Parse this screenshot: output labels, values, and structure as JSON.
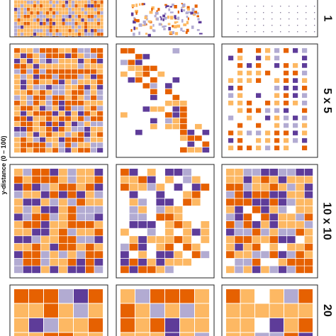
{
  "chart_data": {
    "type": "heatmap",
    "y_axis_title": "y-distance (0 – 100)",
    "row_labels": [
      "1",
      "5 x 5",
      "10 x 10",
      "20"
    ],
    "columns": 3,
    "colors": {
      "dark_orange": "#e66101",
      "light_orange": "#fdb863",
      "light_purple": "#b2abd2",
      "dark_purple": "#5e3c99"
    },
    "panels": [
      {
        "row": 0,
        "col": 0,
        "style": "dense_mosaic",
        "density": 1.0
      },
      {
        "row": 0,
        "col": 1,
        "style": "sparse_specks",
        "density": 0.25
      },
      {
        "row": 0,
        "col": 2,
        "style": "grid_dots",
        "density": 0.05
      },
      {
        "row": 1,
        "col": 0,
        "style": "dense_blocks",
        "density": 1.0
      },
      {
        "row": 1,
        "col": 1,
        "style": "diagonal_sparse",
        "density": 0.35
      },
      {
        "row": 1,
        "col": 2,
        "style": "regular_grid_squares",
        "density": 0.4
      },
      {
        "row": 2,
        "col": 0,
        "style": "dense_blocks",
        "density": 1.0
      },
      {
        "row": 2,
        "col": 1,
        "style": "partial_blocks",
        "density": 0.7
      },
      {
        "row": 2,
        "col": 2,
        "style": "dense_blocks",
        "density": 0.95
      },
      {
        "row": 3,
        "col": 0,
        "style": "large_blocks",
        "density": 1.0
      },
      {
        "row": 3,
        "col": 1,
        "style": "large_blocks",
        "density": 1.0
      },
      {
        "row": 3,
        "col": 2,
        "style": "large_blocks",
        "density": 0.95
      }
    ]
  }
}
